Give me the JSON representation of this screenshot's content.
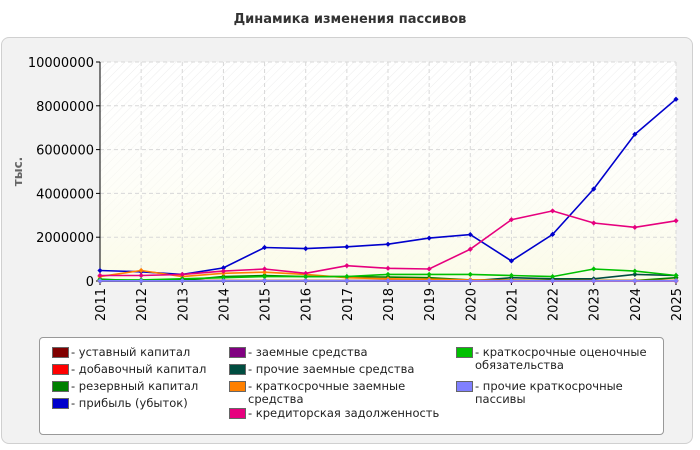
{
  "chart_data": {
    "type": "line",
    "title": "Динамика изменения пассивов",
    "ylabel": "тыс.",
    "xlabel": "",
    "x": [
      "2011",
      "2012",
      "2013",
      "2014",
      "2015",
      "2016",
      "2017",
      "2018",
      "2019",
      "2020",
      "2021",
      "2022",
      "2023",
      "2024",
      "2025"
    ],
    "ylim": [
      0,
      10000000
    ],
    "yticks": [
      "0",
      "2000000",
      "4000000",
      "6000000",
      "8000000",
      "10000000"
    ],
    "grid": true,
    "legend_position": "bottom",
    "series": [
      {
        "name": "- уставный капитал",
        "color": "#800000",
        "values": [
          20000,
          20000,
          20000,
          20000,
          20000,
          20000,
          20000,
          20000,
          20000,
          20000,
          20000,
          20000,
          20000,
          20000,
          20000
        ]
      },
      {
        "name": "- добавочный капитал",
        "color": "#ff0000",
        "values": [
          0,
          0,
          0,
          0,
          0,
          0,
          0,
          0,
          0,
          0,
          0,
          0,
          0,
          0,
          0
        ]
      },
      {
        "name": "- резервный капитал",
        "color": "#008000",
        "values": [
          80000,
          10000,
          30000,
          200000,
          250000,
          200000,
          200000,
          180000,
          150000,
          50000,
          40000,
          30000,
          20000,
          20000,
          150000
        ]
      },
      {
        "name": "- прибыль (убыток)",
        "color": "#0000cc",
        "values": [
          480000,
          420000,
          300000,
          600000,
          1530000,
          1480000,
          1560000,
          1680000,
          1960000,
          2120000,
          920000,
          2130000,
          4200000,
          6700000,
          8300000
        ]
      },
      {
        "name": "- заемные средства",
        "color": "#800080",
        "values": [
          10000,
          10000,
          10000,
          10000,
          10000,
          10000,
          10000,
          10000,
          10000,
          10000,
          10000,
          10000,
          10000,
          10000,
          10000
        ]
      },
      {
        "name": "- прочие заемные средства",
        "color": "#004d40",
        "values": [
          5000,
          5000,
          5000,
          5000,
          5000,
          5000,
          5000,
          5000,
          5000,
          5000,
          150000,
          100000,
          100000,
          300000,
          250000
        ]
      },
      {
        "name": "- краткосрочные заемные средства",
        "color": "#ff8000",
        "values": [
          200000,
          480000,
          200000,
          350000,
          400000,
          300000,
          150000,
          100000,
          80000,
          50000,
          30000,
          20000,
          20000,
          20000,
          20000
        ]
      },
      {
        "name": "- кредиторская задолженность",
        "color": "#e6007e",
        "values": [
          250000,
          250000,
          300000,
          450000,
          550000,
          350000,
          700000,
          580000,
          550000,
          1450000,
          2800000,
          3200000,
          2650000,
          2450000,
          2750000
        ]
      },
      {
        "name": "- краткосрочные оценочные обязательства",
        "color": "#00c000",
        "values": [
          50000,
          50000,
          100000,
          150000,
          200000,
          200000,
          200000,
          300000,
          300000,
          300000,
          250000,
          200000,
          550000,
          450000,
          250000
        ]
      },
      {
        "name": "- прочие краткосрочные пассивы",
        "color": "#8080ff",
        "values": [
          10000,
          10000,
          10000,
          10000,
          10000,
          10000,
          10000,
          10000,
          10000,
          10000,
          10000,
          10000,
          10000,
          10000,
          10000
        ]
      }
    ]
  }
}
